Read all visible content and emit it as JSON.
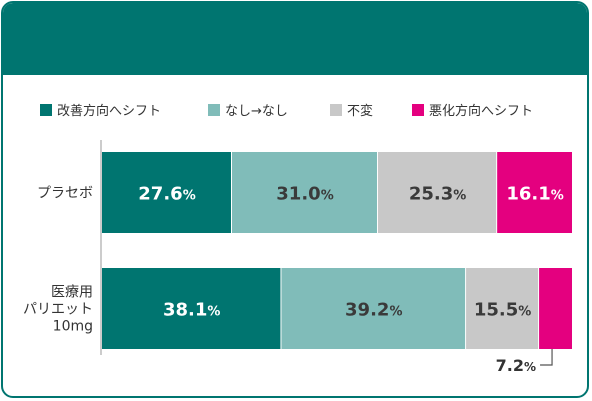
{
  "colors": {
    "frame": "#007570",
    "improve": "#007570",
    "none": "#80bcb9",
    "unchanged": "#c8c8c8",
    "worsen": "#e4007f",
    "axis": "#9a9a9a"
  },
  "chart_data": {
    "type": "bar",
    "orientation": "horizontal",
    "stacked": true,
    "normalized": true,
    "categories": [
      "プラセボ",
      "医療用\nパリエット\n10mg"
    ],
    "legend_position": "top",
    "series": [
      {
        "name": "改善方向へシフト",
        "values": [
          27.6,
          38.1
        ]
      },
      {
        "name": "なし→なし",
        "values": [
          31.0,
          39.2
        ]
      },
      {
        "name": "不変",
        "values": [
          25.3,
          15.5
        ]
      },
      {
        "name": "悪化方向へシフト",
        "values": [
          16.1,
          7.2
        ]
      }
    ],
    "value_labels": [
      [
        "27.6%",
        "31.0%",
        "25.3%",
        "16.1%"
      ],
      [
        "38.1%",
        "39.2%",
        "15.5%",
        "7.2%"
      ]
    ],
    "xlim": [
      0,
      100
    ]
  }
}
